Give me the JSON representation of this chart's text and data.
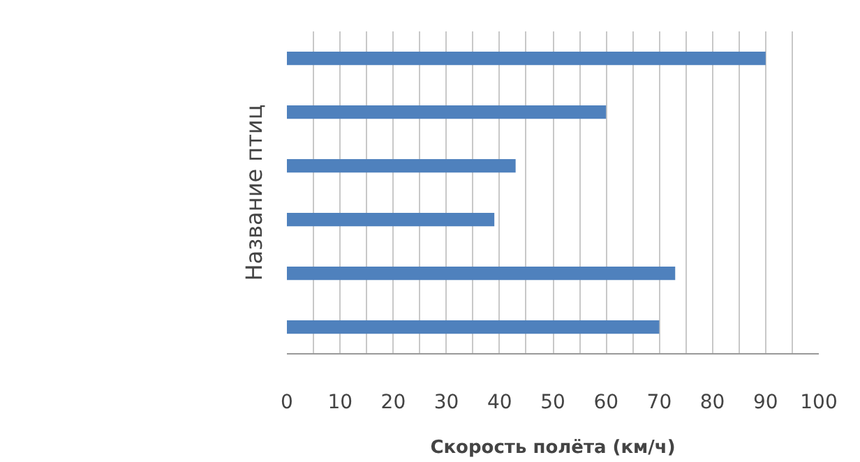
{
  "chart_data": {
    "type": "bar",
    "orientation": "horizontal",
    "xlabel": "Скорость полёта (км/ч)",
    "ylabel": "Название птиц",
    "categories": [
      null,
      null,
      null,
      null,
      null,
      null
    ],
    "values": [
      90,
      60,
      43,
      39,
      73,
      70
    ],
    "color": "#4f81bd",
    "xlim": [
      0,
      100
    ],
    "xticks": [
      0,
      {
        "value": 5,
        "label": null
      },
      10,
      {
        "value": 15,
        "label": null
      },
      20,
      {
        "value": 25,
        "label": null
      },
      30,
      {
        "value": 35,
        "label": null
      },
      40,
      {
        "value": 45,
        "label": null
      },
      50,
      {
        "value": 55,
        "label": null
      },
      60,
      {
        "value": 65,
        "label": null
      },
      70,
      {
        "value": 75,
        "label": null
      },
      80,
      {
        "value": 85,
        "label": null
      },
      90,
      {
        "value": 95,
        "label": null
      },
      100
    ],
    "grid": "x"
  }
}
